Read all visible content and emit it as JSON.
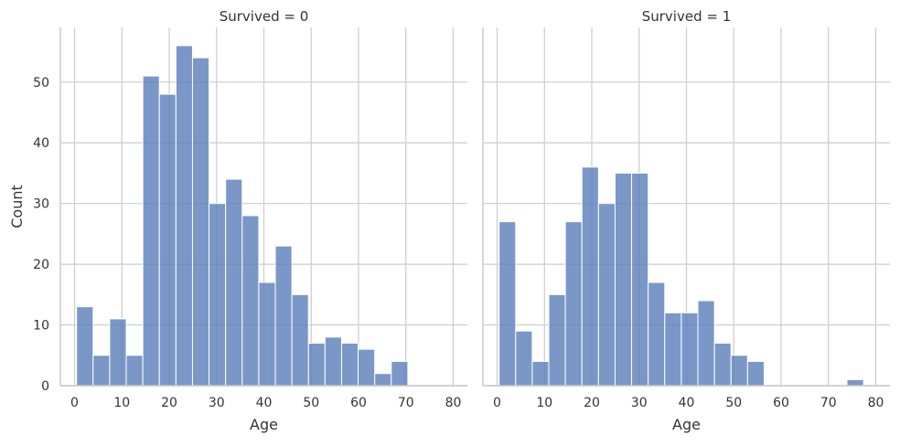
{
  "chart_data": [
    {
      "type": "bar",
      "title": "Survived = 0",
      "xlabel": "Age",
      "ylabel": "Count",
      "xlim": [
        -3,
        83
      ],
      "ylim": [
        0,
        59
      ],
      "xticks": [
        0,
        10,
        20,
        30,
        40,
        50,
        60,
        70,
        80
      ],
      "yticks": [
        0,
        10,
        20,
        30,
        40,
        50
      ],
      "grid": true,
      "color": "#5a7db9",
      "bin_edges": [
        0.42,
        3.92,
        7.42,
        10.92,
        14.42,
        17.92,
        21.42,
        24.92,
        28.42,
        31.92,
        35.42,
        38.92,
        42.42,
        45.92,
        49.42,
        52.92,
        56.42,
        59.92,
        63.42,
        66.92,
        70.42,
        73.92,
        77.42,
        80.92
      ],
      "values": [
        13,
        5,
        11,
        5,
        51,
        48,
        56,
        54,
        30,
        34,
        28,
        17,
        23,
        15,
        7,
        8,
        7,
        6,
        2,
        4,
        0,
        0,
        0
      ]
    },
    {
      "type": "bar",
      "title": "Survived = 1",
      "xlabel": "Age",
      "ylabel": "",
      "xlim": [
        -3,
        83
      ],
      "ylim": [
        0,
        59
      ],
      "xticks": [
        0,
        10,
        20,
        30,
        40,
        50,
        60,
        70,
        80
      ],
      "yticks": [
        0,
        10,
        20,
        30,
        40,
        50
      ],
      "grid": true,
      "color": "#5a7db9",
      "bin_edges": [
        0.42,
        3.92,
        7.42,
        10.92,
        14.42,
        17.92,
        21.42,
        24.92,
        28.42,
        31.92,
        35.42,
        38.92,
        42.42,
        45.92,
        49.42,
        52.92,
        56.42,
        59.92,
        63.42,
        66.92,
        70.42,
        73.92,
        77.42,
        80.92
      ],
      "values": [
        27,
        9,
        4,
        15,
        27,
        36,
        30,
        35,
        35,
        17,
        12,
        12,
        14,
        7,
        5,
        4,
        0,
        0,
        0,
        0,
        0,
        1,
        0
      ]
    }
  ]
}
